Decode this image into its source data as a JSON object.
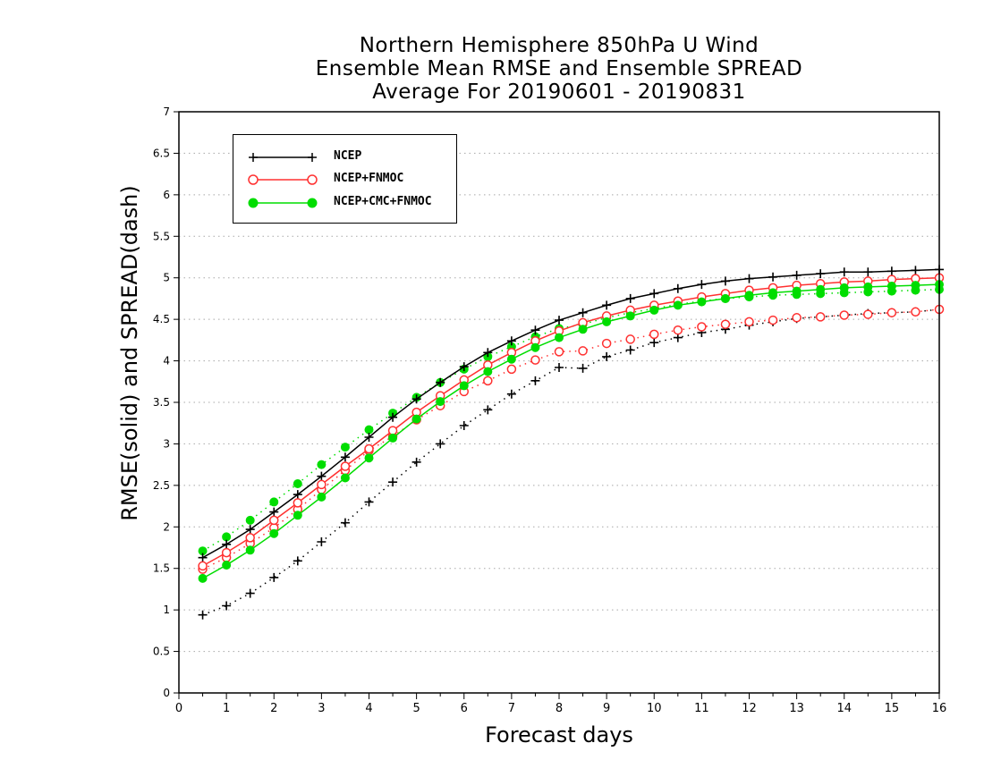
{
  "title_lines": [
    "Northern Hemisphere 850hPa U Wind",
    "Ensemble Mean RMSE and Ensemble SPREAD",
    "Average For 20190601 - 20190831"
  ],
  "chart_data": {
    "type": "line",
    "title": "Northern Hemisphere 850hPa U Wind / Ensemble Mean RMSE and Ensemble SPREAD / Average For 20190601 - 20190831",
    "xlabel": "Forecast days",
    "ylabel": "RMSE(solid) and SPREAD(dash)",
    "xlim": [
      0,
      16
    ],
    "ylim": [
      0,
      7
    ],
    "x_ticks": [
      0,
      1,
      2,
      3,
      4,
      5,
      6,
      7,
      8,
      9,
      10,
      11,
      12,
      13,
      14,
      15,
      16
    ],
    "y_ticks": [
      0,
      0.5,
      1,
      1.5,
      2,
      2.5,
      3,
      3.5,
      4,
      4.5,
      5,
      5.5,
      6,
      6.5,
      7
    ],
    "y_tick_labels": [
      "0",
      "0.5",
      "1",
      "1.5",
      "2",
      "2.5",
      "3",
      "3.5",
      "4",
      "4.5",
      "5",
      "5.5",
      "6",
      "6.5",
      "7"
    ],
    "grid": "horizontal dotted",
    "legend_position": "top-left",
    "x": [
      0.5,
      1,
      1.5,
      2,
      2.5,
      3,
      3.5,
      4,
      4.5,
      5,
      5.5,
      6,
      6.5,
      7,
      7.5,
      8,
      8.5,
      9,
      9.5,
      10,
      10.5,
      11,
      11.5,
      12,
      12.5,
      13,
      13.5,
      14,
      14.5,
      15,
      15.5,
      16
    ],
    "series": [
      {
        "name": "NCEP",
        "color": "#000000",
        "marker": "plus",
        "rmse": [
          1.63,
          1.79,
          1.97,
          2.18,
          2.39,
          2.61,
          2.84,
          3.08,
          3.32,
          3.54,
          3.74,
          3.93,
          4.1,
          4.24,
          4.37,
          4.49,
          4.58,
          4.67,
          4.75,
          4.81,
          4.87,
          4.92,
          4.96,
          4.99,
          5.01,
          5.03,
          5.05,
          5.07,
          5.07,
          5.08,
          5.09,
          5.1
        ],
        "spread": [
          0.94,
          1.05,
          1.2,
          1.39,
          1.59,
          1.82,
          2.05,
          2.3,
          2.54,
          2.78,
          3.0,
          3.22,
          3.41,
          3.6,
          3.76,
          3.92,
          3.91,
          4.05,
          4.13,
          4.22,
          4.28,
          4.34,
          4.38,
          4.43,
          4.47,
          4.51,
          4.53,
          4.55,
          4.57,
          4.58,
          4.59,
          4.62
        ]
      },
      {
        "name": "NCEP+FNMOC",
        "color": "#ff3030",
        "marker": "open-circle",
        "rmse": [
          1.53,
          1.69,
          1.87,
          2.08,
          2.29,
          2.51,
          2.73,
          2.94,
          3.16,
          3.38,
          3.58,
          3.77,
          3.95,
          4.1,
          4.24,
          4.36,
          4.46,
          4.54,
          4.61,
          4.67,
          4.72,
          4.77,
          4.81,
          4.85,
          4.88,
          4.91,
          4.93,
          4.95,
          4.96,
          4.98,
          4.99,
          5.0
        ],
        "spread": [
          1.49,
          1.63,
          1.8,
          1.99,
          2.21,
          2.45,
          2.68,
          2.92,
          3.09,
          3.29,
          3.46,
          3.63,
          3.76,
          3.9,
          4.01,
          4.11,
          4.12,
          4.21,
          4.26,
          4.32,
          4.37,
          4.41,
          4.44,
          4.47,
          4.49,
          4.52,
          4.53,
          4.55,
          4.56,
          4.58,
          4.59,
          4.62
        ]
      },
      {
        "name": "NCEP+CMC+FNMOC",
        "color": "#00dd00",
        "marker": "filled-circle",
        "rmse": [
          1.38,
          1.54,
          1.72,
          1.92,
          2.14,
          2.36,
          2.59,
          2.83,
          3.07,
          3.3,
          3.51,
          3.7,
          3.87,
          4.02,
          4.16,
          4.28,
          4.38,
          4.47,
          4.54,
          4.61,
          4.67,
          4.71,
          4.75,
          4.79,
          4.82,
          4.84,
          4.86,
          4.88,
          4.89,
          4.9,
          4.91,
          4.92
        ],
        "spread": [
          1.71,
          1.88,
          2.08,
          2.3,
          2.52,
          2.75,
          2.96,
          3.17,
          3.37,
          3.56,
          3.74,
          3.9,
          4.05,
          4.17,
          4.29,
          4.39,
          4.44,
          4.52,
          4.58,
          4.63,
          4.68,
          4.72,
          4.75,
          4.77,
          4.79,
          4.8,
          4.81,
          4.82,
          4.83,
          4.84,
          4.85,
          4.86
        ]
      }
    ]
  }
}
